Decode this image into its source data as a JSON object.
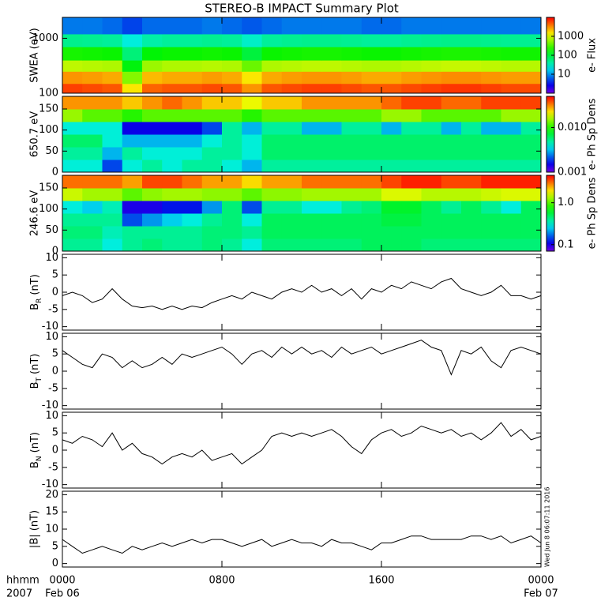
{
  "title": "STEREO-B IMPACT Summary Plot",
  "timestamp": "Wed Jun  8 06:07:11 2016",
  "time_label": "hhmm",
  "year_label": "2007",
  "chart_data": [
    {
      "type": "heatmap",
      "ylabel": "SWEA (eV)",
      "ylog": true,
      "ylim": [
        100,
        2400
      ],
      "yticks": [
        100,
        1000
      ],
      "xlim": [
        0,
        24
      ],
      "xticks": [
        0,
        8,
        16,
        24
      ],
      "xbins": [
        0,
        1,
        2,
        3,
        4,
        5,
        6,
        7,
        8,
        9,
        10,
        11,
        12,
        13,
        14,
        15,
        16,
        17,
        18,
        19,
        20,
        21,
        22,
        23,
        24
      ],
      "ybins": [
        100,
        150,
        250,
        400,
        700,
        1200,
        2400
      ],
      "zlabel": "e- Flux",
      "zlog": true,
      "zlim": [
        1,
        10000
      ],
      "zticks": [
        10,
        100,
        1000
      ],
      "z": [
        [
          6000,
          5500,
          5000,
          1500,
          4500,
          5000,
          5000,
          5500,
          5000,
          3000,
          5000,
          5500,
          6000,
          6000,
          5500,
          5000,
          5000,
          5500,
          6000,
          6500,
          6500,
          6000,
          5500,
          5500
        ],
        [
          3000,
          2800,
          2500,
          500,
          2200,
          2500,
          2500,
          2800,
          2500,
          1500,
          2500,
          2800,
          3000,
          3000,
          2800,
          2500,
          2500,
          2800,
          3000,
          3200,
          3200,
          3000,
          2800,
          2800
        ],
        [
          800,
          750,
          700,
          150,
          600,
          700,
          700,
          750,
          700,
          400,
          700,
          750,
          800,
          800,
          750,
          700,
          700,
          750,
          800,
          850,
          850,
          800,
          750,
          750
        ],
        [
          200,
          190,
          180,
          60,
          160,
          180,
          180,
          190,
          180,
          100,
          180,
          190,
          200,
          200,
          190,
          180,
          180,
          190,
          200,
          210,
          210,
          200,
          190,
          190
        ],
        [
          50,
          48,
          45,
          25,
          40,
          45,
          45,
          48,
          45,
          30,
          45,
          48,
          50,
          50,
          48,
          45,
          45,
          48,
          50,
          52,
          52,
          50,
          48,
          48
        ],
        [
          8,
          8,
          7,
          5,
          7,
          7,
          7,
          8,
          7,
          6,
          7,
          8,
          8,
          8,
          8,
          7,
          7,
          8,
          8,
          8,
          8,
          8,
          8,
          8
        ]
      ]
    },
    {
      "type": "heatmap",
      "ylabel": "650.7 eV",
      "ylim": [
        0,
        180
      ],
      "yticks": [
        0,
        50,
        100,
        150
      ],
      "xlim": [
        0,
        24
      ],
      "xticks": [
        0,
        8,
        16,
        24
      ],
      "xbins": [
        0,
        1,
        2,
        3,
        4,
        5,
        6,
        7,
        8,
        9,
        10,
        11,
        12,
        13,
        14,
        15,
        16,
        17,
        18,
        19,
        20,
        21,
        22,
        23,
        24
      ],
      "ybins": [
        0,
        30,
        60,
        90,
        120,
        150,
        180
      ],
      "zlabel": "e- Ph Sp Dens",
      "zlog": true,
      "zlim": [
        0.001,
        0.05
      ],
      "zticks": [
        0.001,
        {
          "value": 0.01,
          "label": "0.010"
        }
      ],
      "z": [
        [
          0.004,
          0.004,
          0.002,
          0.004,
          0.005,
          0.004,
          0.005,
          0.005,
          0.004,
          0.003,
          0.005,
          0.005,
          0.005,
          0.005,
          0.005,
          0.005,
          0.005,
          0.005,
          0.005,
          0.005,
          0.005,
          0.005,
          0.005,
          0.005
        ],
        [
          0.005,
          0.005,
          0.003,
          0.005,
          0.004,
          0.004,
          0.004,
          0.005,
          0.005,
          0.004,
          0.006,
          0.006,
          0.006,
          0.006,
          0.006,
          0.006,
          0.006,
          0.006,
          0.006,
          0.006,
          0.006,
          0.006,
          0.006,
          0.006
        ],
        [
          0.006,
          0.006,
          0.004,
          0.003,
          0.003,
          0.003,
          0.003,
          0.004,
          0.005,
          0.004,
          0.006,
          0.006,
          0.006,
          0.006,
          0.006,
          0.006,
          0.006,
          0.006,
          0.006,
          0.006,
          0.006,
          0.006,
          0.006,
          0.006
        ],
        [
          0.004,
          0.004,
          0.004,
          0.0015,
          0.0015,
          0.0015,
          0.0015,
          0.002,
          0.005,
          0.003,
          0.005,
          0.005,
          0.003,
          0.003,
          0.005,
          0.005,
          0.003,
          0.005,
          0.005,
          0.003,
          0.005,
          0.003,
          0.003,
          0.005
        ],
        [
          0.015,
          0.012,
          0.012,
          0.01,
          0.012,
          0.012,
          0.012,
          0.012,
          0.012,
          0.01,
          0.012,
          0.012,
          0.012,
          0.012,
          0.012,
          0.012,
          0.015,
          0.015,
          0.012,
          0.012,
          0.012,
          0.012,
          0.015,
          0.015
        ],
        [
          0.03,
          0.03,
          0.03,
          0.025,
          0.03,
          0.035,
          0.03,
          0.025,
          0.025,
          0.02,
          0.025,
          0.025,
          0.03,
          0.03,
          0.03,
          0.03,
          0.035,
          0.04,
          0.04,
          0.035,
          0.035,
          0.04,
          0.04,
          0.04
        ]
      ]
    },
    {
      "type": "heatmap",
      "ylabel": "246.6 eV",
      "ylim": [
        0,
        180
      ],
      "yticks": [
        0,
        50,
        100,
        150
      ],
      "xlim": [
        0,
        24
      ],
      "xticks": [
        0,
        8,
        16,
        24
      ],
      "xbins": [
        0,
        1,
        2,
        3,
        4,
        5,
        6,
        7,
        8,
        9,
        10,
        11,
        12,
        13,
        14,
        15,
        16,
        17,
        18,
        19,
        20,
        21,
        22,
        23,
        24
      ],
      "ybins": [
        0,
        30,
        60,
        90,
        120,
        150,
        180
      ],
      "zlabel": "e- Ph Sp Dens",
      "zlog": true,
      "zlim": [
        0.07,
        4.5
      ],
      "zticks": [
        0.1,
        {
          "value": 1,
          "label": "1.0"
        }
      ],
      "z": [
        [
          0.4,
          0.4,
          0.3,
          0.4,
          0.45,
          0.4,
          0.4,
          0.45,
          0.4,
          0.3,
          0.45,
          0.45,
          0.45,
          0.45,
          0.45,
          0.5,
          0.5,
          0.5,
          0.45,
          0.45,
          0.45,
          0.45,
          0.45,
          0.45
        ],
        [
          0.45,
          0.45,
          0.35,
          0.4,
          0.4,
          0.4,
          0.4,
          0.45,
          0.45,
          0.4,
          0.5,
          0.5,
          0.5,
          0.5,
          0.5,
          0.5,
          0.5,
          0.5,
          0.5,
          0.5,
          0.5,
          0.5,
          0.5,
          0.5
        ],
        [
          0.4,
          0.4,
          0.4,
          0.15,
          0.2,
          0.25,
          0.3,
          0.4,
          0.45,
          0.3,
          0.5,
          0.5,
          0.5,
          0.5,
          0.5,
          0.5,
          0.55,
          0.55,
          0.5,
          0.5,
          0.5,
          0.5,
          0.5,
          0.5
        ],
        [
          0.3,
          0.25,
          0.35,
          0.1,
          0.1,
          0.12,
          0.12,
          0.2,
          0.45,
          0.15,
          0.4,
          0.4,
          0.3,
          0.3,
          0.4,
          0.45,
          0.6,
          0.6,
          0.5,
          0.4,
          0.5,
          0.4,
          0.3,
          0.5
        ],
        [
          1.5,
          1.3,
          1.3,
          1.0,
          1.2,
          1.3,
          1.3,
          1.2,
          1.2,
          1.0,
          1.2,
          1.2,
          1.3,
          1.3,
          1.3,
          1.3,
          1.6,
          1.6,
          1.4,
          1.4,
          1.4,
          1.5,
          1.6,
          1.6
        ],
        [
          3,
          3,
          3,
          2.5,
          3.5,
          3.5,
          3,
          2.5,
          2.5,
          2,
          2.5,
          2.5,
          3,
          3,
          3,
          3,
          3.5,
          4,
          4,
          3.5,
          3.5,
          4,
          4,
          4
        ]
      ]
    },
    {
      "type": "line",
      "ylabel_parts": [
        "B",
        "R",
        "(nT)"
      ],
      "color": "#000000",
      "ylim": [
        -11,
        11
      ],
      "yticks": [
        -10,
        -5,
        0,
        5,
        10
      ],
      "xlim": [
        0,
        24
      ],
      "xticks": [
        0,
        8,
        16,
        24
      ],
      "x": [
        0,
        0.5,
        1,
        1.5,
        2,
        2.5,
        3,
        3.5,
        4,
        4.5,
        5,
        5.5,
        6,
        6.5,
        7,
        7.5,
        8,
        8.5,
        9,
        9.5,
        10,
        10.5,
        11,
        11.5,
        12,
        12.5,
        13,
        13.5,
        14,
        14.5,
        15,
        15.5,
        16,
        16.5,
        17,
        17.5,
        18,
        18.5,
        19,
        19.5,
        20,
        20.5,
        21,
        21.5,
        22,
        22.5,
        23,
        23.5,
        24
      ],
      "values": [
        -1,
        0,
        -1,
        -3,
        -2,
        1,
        -2,
        -4,
        -4.5,
        -4,
        -5,
        -4,
        -5,
        -4,
        -4.5,
        -3,
        -2,
        -1,
        -2,
        0,
        -1,
        -2,
        0,
        1,
        0,
        2,
        0,
        1,
        -1,
        1,
        -2,
        1,
        0,
        2,
        1,
        3,
        2,
        1,
        3,
        4,
        1,
        0,
        -1,
        0,
        2,
        -1,
        -1,
        -2,
        -1
      ]
    },
    {
      "type": "line",
      "ylabel_parts": [
        "B",
        "T",
        "(nT)"
      ],
      "color": "#000000",
      "ylim": [
        -11,
        11
      ],
      "yticks": [
        -10,
        -5,
        0,
        5,
        10
      ],
      "xlim": [
        0,
        24
      ],
      "xticks": [
        0,
        8,
        16,
        24
      ],
      "x": [
        0,
        0.5,
        1,
        1.5,
        2,
        2.5,
        3,
        3.5,
        4,
        4.5,
        5,
        5.5,
        6,
        6.5,
        7,
        7.5,
        8,
        8.5,
        9,
        9.5,
        10,
        10.5,
        11,
        11.5,
        12,
        12.5,
        13,
        13.5,
        14,
        14.5,
        15,
        15.5,
        16,
        16.5,
        17,
        17.5,
        18,
        18.5,
        19,
        19.5,
        20,
        20.5,
        21,
        21.5,
        22,
        22.5,
        23,
        23.5,
        24
      ],
      "values": [
        6,
        4,
        2,
        1,
        5,
        4,
        1,
        3,
        1,
        2,
        4,
        2,
        5,
        4,
        5,
        6,
        7,
        5,
        2,
        5,
        6,
        4,
        7,
        5,
        7,
        5,
        6,
        4,
        7,
        5,
        6,
        7,
        5,
        6,
        7,
        8,
        9,
        7,
        6,
        -1,
        6,
        5,
        7,
        3,
        1,
        6,
        7,
        6,
        5
      ]
    },
    {
      "type": "line",
      "ylabel_parts": [
        "B",
        "N",
        "(nT)"
      ],
      "color": "#000000",
      "ylim": [
        -11,
        11
      ],
      "yticks": [
        -10,
        -5,
        0,
        5,
        10
      ],
      "xlim": [
        0,
        24
      ],
      "xticks": [
        0,
        8,
        16,
        24
      ],
      "x": [
        0,
        0.5,
        1,
        1.5,
        2,
        2.5,
        3,
        3.5,
        4,
        4.5,
        5,
        5.5,
        6,
        6.5,
        7,
        7.5,
        8,
        8.5,
        9,
        9.5,
        10,
        10.5,
        11,
        11.5,
        12,
        12.5,
        13,
        13.5,
        14,
        14.5,
        15,
        15.5,
        16,
        16.5,
        17,
        17.5,
        18,
        18.5,
        19,
        19.5,
        20,
        20.5,
        21,
        21.5,
        22,
        22.5,
        23,
        23.5,
        24
      ],
      "values": [
        3,
        2,
        4,
        3,
        1,
        5,
        0,
        2,
        -1,
        -2,
        -4,
        -2,
        -1,
        -2,
        0,
        -3,
        -2,
        -1,
        -4,
        -2,
        0,
        4,
        5,
        4,
        5,
        4,
        5,
        6,
        4,
        1,
        -1,
        3,
        5,
        6,
        4,
        5,
        7,
        6,
        5,
        6,
        4,
        5,
        3,
        5,
        8,
        4,
        6,
        3,
        4
      ]
    },
    {
      "type": "line",
      "ylabel": "|B| (nT)",
      "color": "#000000",
      "ylim": [
        -1,
        21
      ],
      "yticks": [
        0,
        5,
        10,
        15,
        20
      ],
      "xlim": [
        0,
        24
      ],
      "xticks": [
        {
          "value": 0,
          "label": "0000"
        },
        {
          "value": 8,
          "label": "0800"
        },
        {
          "value": 16,
          "label": "1600"
        },
        {
          "value": 24,
          "label": "0000"
        }
      ],
      "xtick_dates": [
        "Feb 06",
        "Feb 07"
      ],
      "x": [
        0,
        0.5,
        1,
        1.5,
        2,
        2.5,
        3,
        3.5,
        4,
        4.5,
        5,
        5.5,
        6,
        6.5,
        7,
        7.5,
        8,
        8.5,
        9,
        9.5,
        10,
        10.5,
        11,
        11.5,
        12,
        12.5,
        13,
        13.5,
        14,
        14.5,
        15,
        15.5,
        16,
        16.5,
        17,
        17.5,
        18,
        18.5,
        19,
        19.5,
        20,
        20.5,
        21,
        21.5,
        22,
        22.5,
        23,
        23.5,
        24
      ],
      "values": [
        7,
        5,
        3,
        4,
        5,
        4,
        3,
        5,
        4,
        5,
        6,
        5,
        6,
        7,
        6,
        7,
        7,
        6,
        5,
        6,
        7,
        5,
        6,
        7,
        6,
        6,
        5,
        7,
        6,
        6,
        5,
        4,
        6,
        6,
        7,
        8,
        8,
        7,
        7,
        7,
        7,
        8,
        8,
        7,
        8,
        6,
        7,
        8,
        6
      ]
    }
  ]
}
